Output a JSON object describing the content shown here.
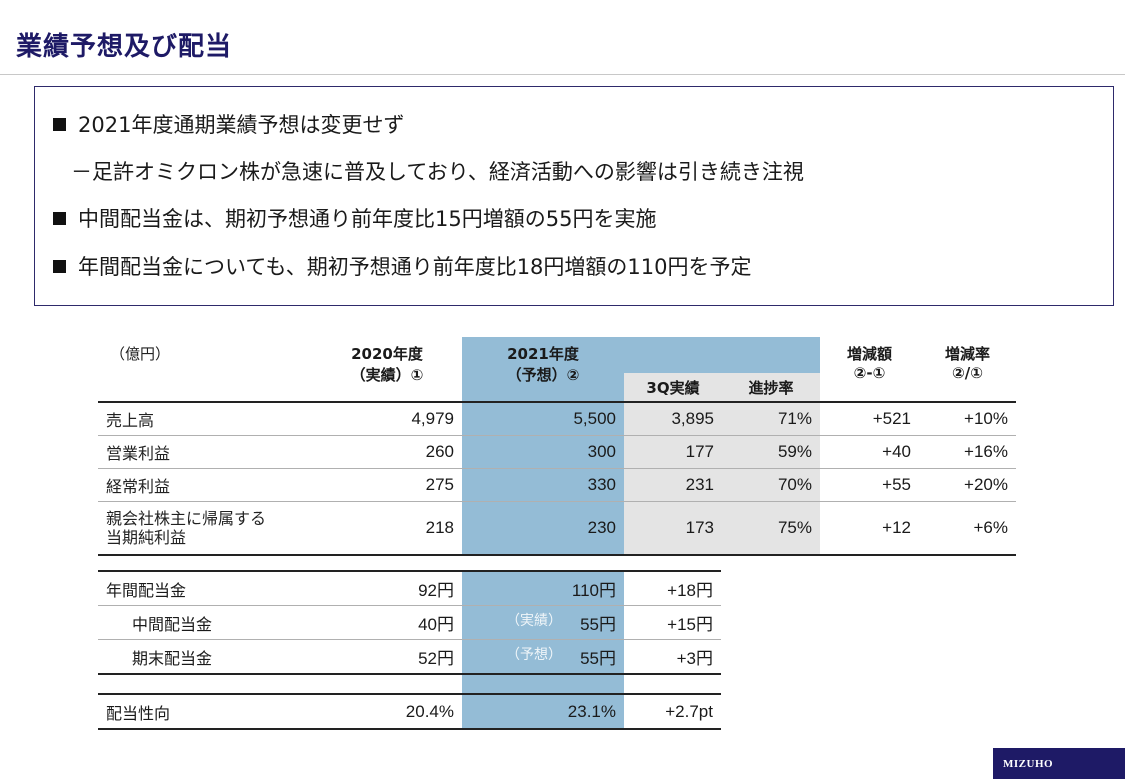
{
  "title": "業績予想及び配当",
  "messages": [
    {
      "bullet": true,
      "text": "2021年度通期業績予想は変更せず"
    },
    {
      "bullet": false,
      "text": "－足許オミクロン株が急速に普及しており、経済活動への影響は引き続き注視"
    },
    {
      "bullet": true,
      "text": "中間配当金は、期初予想通り前年度比15円増額の55円を実施"
    },
    {
      "bullet": true,
      "text": "年間配当金についても、期初予想通り前年度比18円増額の110円を予定"
    }
  ],
  "results_table": {
    "unit": "（億円）",
    "headers": {
      "fy2020_line1": "2020年度",
      "fy2020_line2": "（実績）①",
      "fy2021_line1": "2021年度",
      "fy2021_line2": "（予想）②",
      "q3_actual": "3Q実績",
      "progress": "進捗率",
      "diff_line1": "増減額",
      "diff_line2": "②-①",
      "rate_line1": "増減率",
      "rate_line2": "②/①"
    },
    "rows": [
      {
        "label": "売上高",
        "fy2020": "4,979",
        "fy2021": "5,500",
        "q3": "3,895",
        "progress": "71%",
        "diff": "+521",
        "rate": "+10%"
      },
      {
        "label": "営業利益",
        "fy2020": "260",
        "fy2021": "300",
        "q3": "177",
        "progress": "59%",
        "diff": "+40",
        "rate": "+16%"
      },
      {
        "label": "経常利益",
        "fy2020": "275",
        "fy2021": "330",
        "q3": "231",
        "progress": "70%",
        "diff": "+55",
        "rate": "+20%"
      },
      {
        "label_line1": "親会社株主に帰属する",
        "label_line2": "当期純利益",
        "fy2020": "218",
        "fy2021": "230",
        "q3": "173",
        "progress": "75%",
        "diff": "+12",
        "rate": "+6%"
      }
    ]
  },
  "dividend_table": {
    "rows": [
      {
        "label": "年間配当金",
        "fy2020": "92円",
        "note": "",
        "fy2021": "110円",
        "diff": "+18円"
      },
      {
        "label": "中間配当金",
        "fy2020": "40円",
        "note": "（実績）",
        "fy2021": "55円",
        "diff": "+15円"
      },
      {
        "label": "期末配当金",
        "fy2020": "52円",
        "note": "（予想）",
        "fy2021": "55円",
        "diff": "+3円"
      }
    ],
    "payout": {
      "label": "配当性向",
      "fy2020": "20.4%",
      "fy2021": "23.1%",
      "diff": "+2.7pt"
    }
  },
  "logo": "MIZUHO",
  "colors": {
    "brand": "#1e1a66",
    "forecast_column": "#94bcd6",
    "actual_column": "#e4e4e4"
  }
}
